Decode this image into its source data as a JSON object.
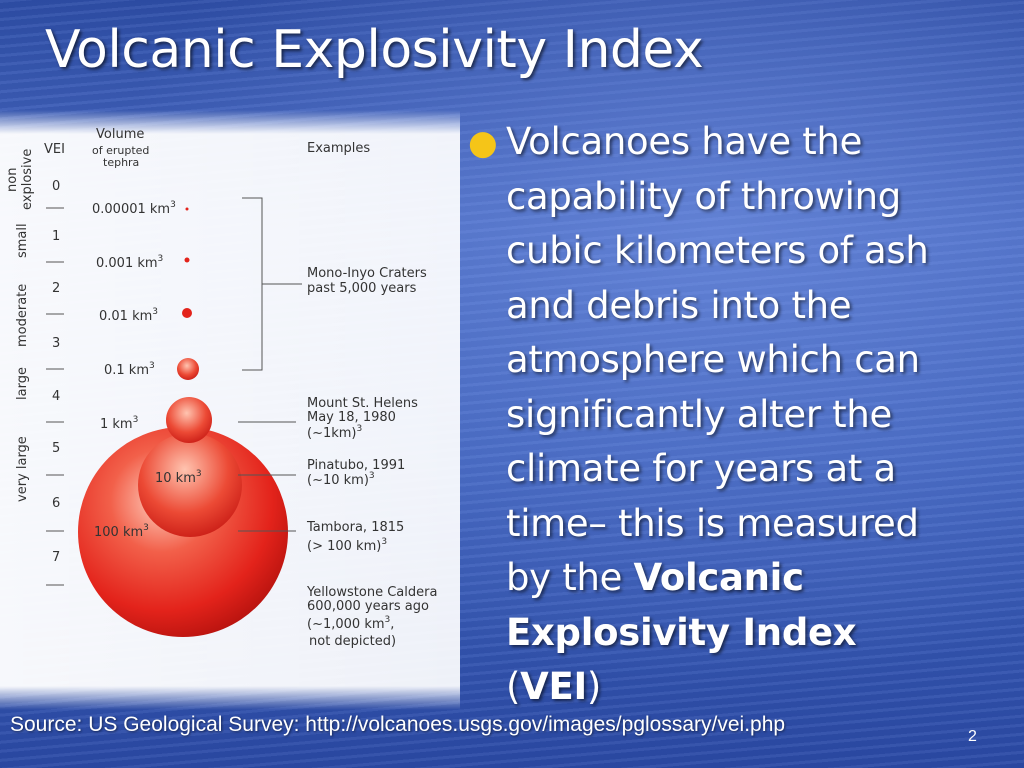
{
  "slide": {
    "title": "Volcanic Explosivity Index",
    "page_number": "2",
    "source": "Source: US Geological Survey: http://volcanoes.usgs.gov/images/pglossary/vei.php",
    "colors": {
      "background": "#3a5cbf",
      "bullet": "#f5c518",
      "text": "#ffffff",
      "plume": "#e8241c"
    }
  },
  "bullet": {
    "lines": [
      "Volcanoes have the",
      "capability of throwing",
      "cubic kilometers of ash",
      "and debris into the",
      "atmosphere which can",
      "significantly alter the",
      "climate for years at a",
      "time– this is measured",
      "by the ",
      "Volcanic",
      "Explosivity Index",
      "(",
      "VEI",
      ")"
    ]
  },
  "diagram": {
    "headers": {
      "vei": "VEI",
      "volume_line1": "Volume",
      "volume_line2": "of erupted",
      "volume_line3": "tephra",
      "examples": "Examples"
    },
    "categories": [
      {
        "line1": "non",
        "line2": "explosive"
      },
      {
        "line1": "small",
        "line2": ""
      },
      {
        "line1": "moderate",
        "line2": ""
      },
      {
        "line1": "large",
        "line2": ""
      },
      {
        "line1": "very large",
        "line2": ""
      }
    ],
    "vei_numbers": [
      "0",
      "1",
      "2",
      "3",
      "4",
      "5",
      "6",
      "7"
    ],
    "volumes": [
      {
        "value": "0.00001 km",
        "sup": "3"
      },
      {
        "value": "0.001 km",
        "sup": "3"
      },
      {
        "value": "0.01 km",
        "sup": "3"
      },
      {
        "value": "0.1 km",
        "sup": "3"
      },
      {
        "value": "1 km",
        "sup": "3"
      },
      {
        "value": "10 km",
        "sup": "3"
      },
      {
        "value": "100 km",
        "sup": "3"
      }
    ],
    "examples": [
      {
        "lines": [
          "Mono-Inyo Craters",
          "past 5,000 years"
        ]
      },
      {
        "lines": [
          "Mount St. Helens",
          "May 18, 1980",
          "(~1km)"
        ],
        "sup": "3"
      },
      {
        "lines": [
          "Pinatubo, 1991",
          "(~10 km)"
        ],
        "sup": "3"
      },
      {
        "lines": [
          "Tambora, 1815",
          "(> 100 km)"
        ],
        "sup": "3"
      },
      {
        "lines": [
          "Yellowstone Caldera",
          "600,000 years ago",
          "(~1,000 km",
          " not depicted)"
        ],
        "sup": "3"
      }
    ]
  }
}
